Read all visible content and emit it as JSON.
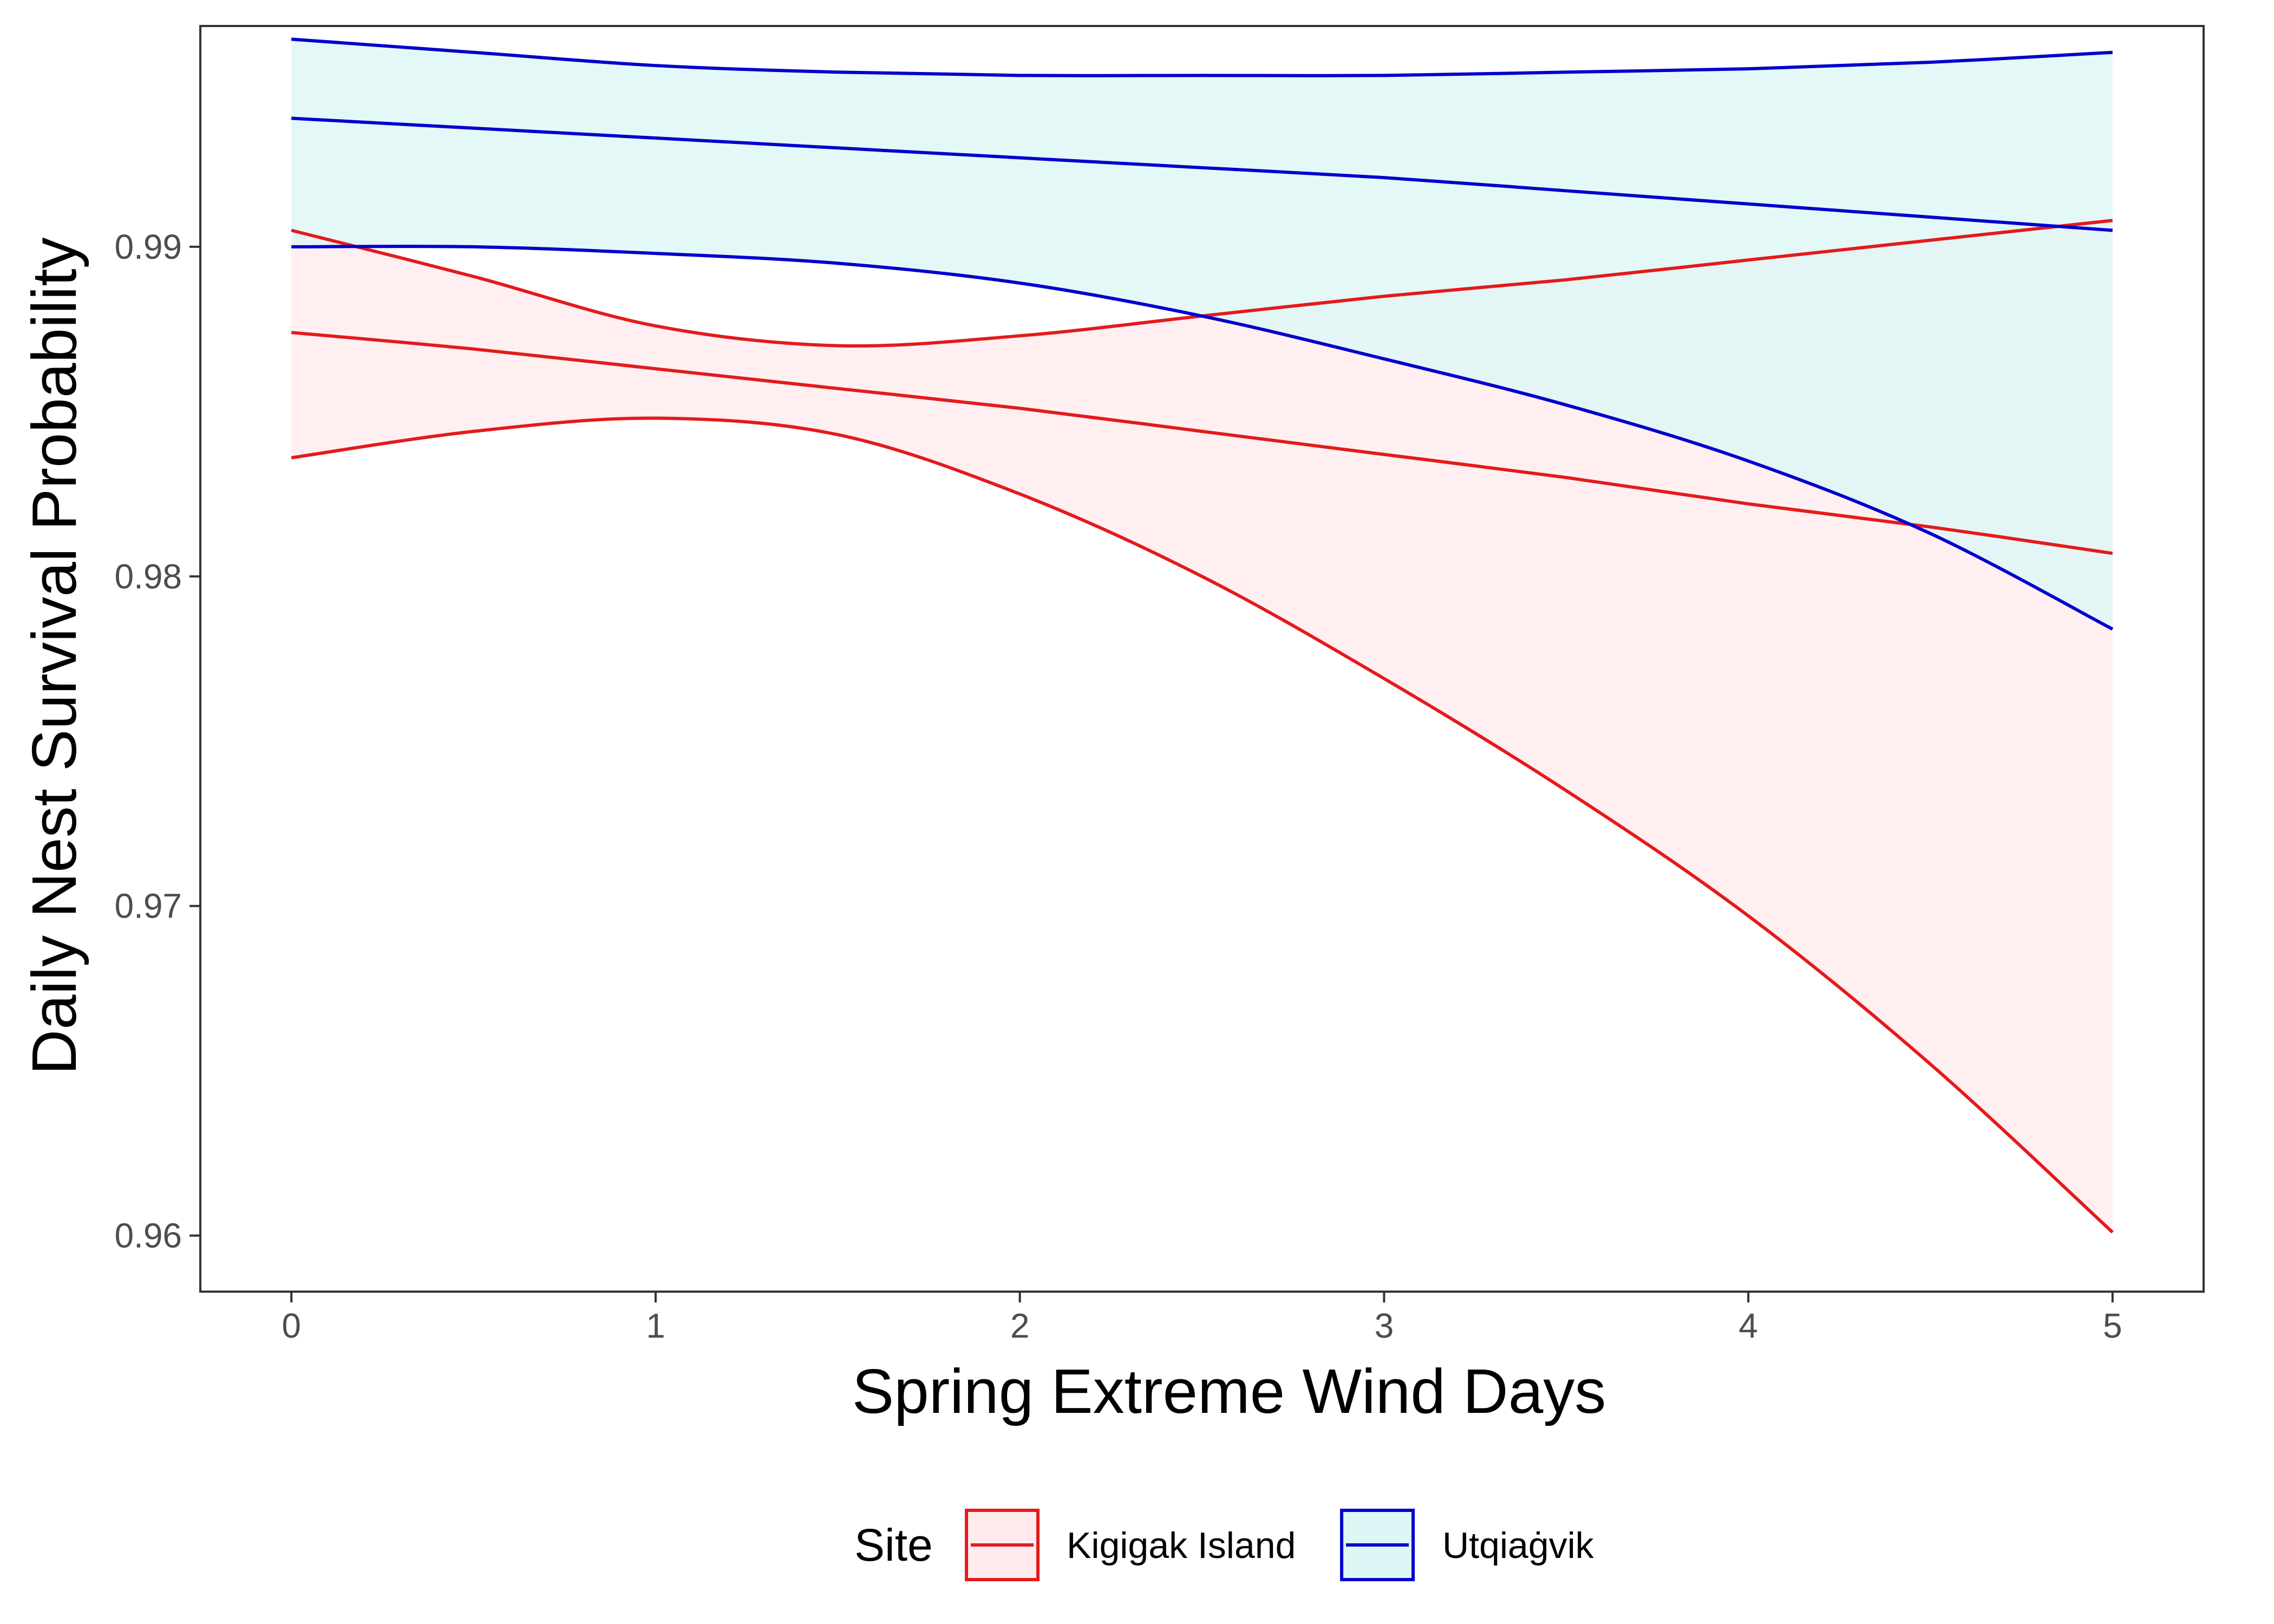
{
  "chart_data": {
    "type": "line",
    "title": "",
    "xlabel": "Spring Extreme Wind Days",
    "ylabel": "Daily Nest Survival Probability",
    "xlim": [
      -0.25,
      5.25
    ],
    "ylim": [
      0.9583,
      0.9967
    ],
    "x_ticks": [
      0,
      1,
      2,
      3,
      4,
      5
    ],
    "x_tick_labels": [
      "0",
      "1",
      "2",
      "3",
      "4",
      "5"
    ],
    "y_ticks": [
      0.96,
      0.97,
      0.98,
      0.99
    ],
    "y_tick_labels": [
      "0.96",
      "0.97",
      "0.98",
      "0.99"
    ],
    "grid": false,
    "legend": {
      "title": "Site",
      "placement": "bottom"
    },
    "series": [
      {
        "name": "Kigigak Island",
        "color": "#E41A1C",
        "fill": "#FFEBEE",
        "x": [
          0,
          0.5,
          1,
          1.5,
          2,
          2.5,
          3,
          3.5,
          4,
          4.5,
          5
        ],
        "y": [
          0.9874,
          0.9869,
          0.9863,
          0.9857,
          0.9851,
          0.9844,
          0.9837,
          0.983,
          0.9822,
          0.9815,
          0.9807
        ],
        "lower": [
          0.9836,
          0.9844,
          0.9848,
          0.9843,
          0.9825,
          0.98,
          0.9769,
          0.9735,
          0.9697,
          0.9652,
          0.9601
        ],
        "upper": [
          0.9905,
          0.9891,
          0.9876,
          0.987,
          0.9873,
          0.9879,
          0.9885,
          0.989,
          0.9896,
          0.9902,
          0.9908
        ]
      },
      {
        "name": "Utqiaġvik",
        "color": "#0000CD",
        "fill": "#DDF6F6",
        "x": [
          0,
          0.5,
          1,
          1.5,
          2,
          2.5,
          3,
          3.5,
          4,
          4.5,
          5
        ],
        "y": [
          0.9939,
          0.9936,
          0.9933,
          0.993,
          0.9927,
          0.9924,
          0.9921,
          0.9917,
          0.9913,
          0.9909,
          0.9905
        ],
        "lower": [
          0.99,
          0.99,
          0.9898,
          0.9895,
          0.9889,
          0.9879,
          0.9866,
          0.9852,
          0.9835,
          0.9813,
          0.9784
        ],
        "upper": [
          0.9963,
          0.9959,
          0.9955,
          0.9953,
          0.9952,
          0.9952,
          0.9952,
          0.9953,
          0.9954,
          0.9956,
          0.9959
        ]
      }
    ]
  }
}
